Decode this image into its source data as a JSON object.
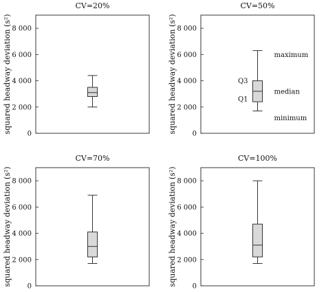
{
  "chart_data": [
    {
      "type": "box",
      "title": "CV=20%",
      "ylabel": "squared headway deviation (s²)",
      "ylim": [
        0,
        9000
      ],
      "yticks": [
        0,
        2000,
        4000,
        6000,
        8000
      ],
      "ytick_labels": [
        "0",
        "2 000",
        "4 000",
        "6 000",
        "8 000"
      ],
      "box": {
        "min": 2000,
        "q1": 2800,
        "median": 3100,
        "q3": 3500,
        "max": 4400
      },
      "box_color": "#d9d9d9",
      "annotations": []
    },
    {
      "type": "box",
      "title": "CV=50%",
      "ylabel": "squared headway deviation (s²)",
      "ylim": [
        0,
        9000
      ],
      "yticks": [
        0,
        2000,
        4000,
        6000,
        8000
      ],
      "ytick_labels": [
        "0",
        "2 000",
        "4 000",
        "6 000",
        "8 000"
      ],
      "box": {
        "min": 1700,
        "q1": 2400,
        "median": 3200,
        "q3": 4000,
        "max": 6300
      },
      "box_color": "#d9d9d9",
      "annotations": [
        {
          "text": "maximum",
          "value": 6300,
          "side": "right"
        },
        {
          "text": "median",
          "value": 3200,
          "side": "right"
        },
        {
          "text": "minimum",
          "value": 1700,
          "side": "right"
        },
        {
          "text": "Q3",
          "value": 4000,
          "side": "left"
        },
        {
          "text": "Q1",
          "value": 2400,
          "side": "left"
        }
      ]
    },
    {
      "type": "box",
      "title": "CV=70%",
      "ylabel": "squared headway deviation (s²)",
      "ylim": [
        0,
        9000
      ],
      "yticks": [
        0,
        2000,
        4000,
        6000,
        8000
      ],
      "ytick_labels": [
        "0",
        "2 000",
        "4 000",
        "6 000",
        "8 000"
      ],
      "box": {
        "min": 1700,
        "q1": 2200,
        "median": 3000,
        "q3": 4100,
        "max": 6900
      },
      "box_color": "#d9d9d9",
      "annotations": []
    },
    {
      "type": "box",
      "title": "CV=100%",
      "ylabel": "squared headway deviation (s²)",
      "ylim": [
        0,
        9000
      ],
      "yticks": [
        0,
        2000,
        4000,
        6000,
        8000
      ],
      "ytick_labels": [
        "0",
        "2 000",
        "4 000",
        "6 000",
        "8 000"
      ],
      "box": {
        "min": 1700,
        "q1": 2200,
        "median": 3100,
        "q3": 4700,
        "max": 8000
      },
      "box_color": "#d9d9d9",
      "annotations": []
    }
  ]
}
